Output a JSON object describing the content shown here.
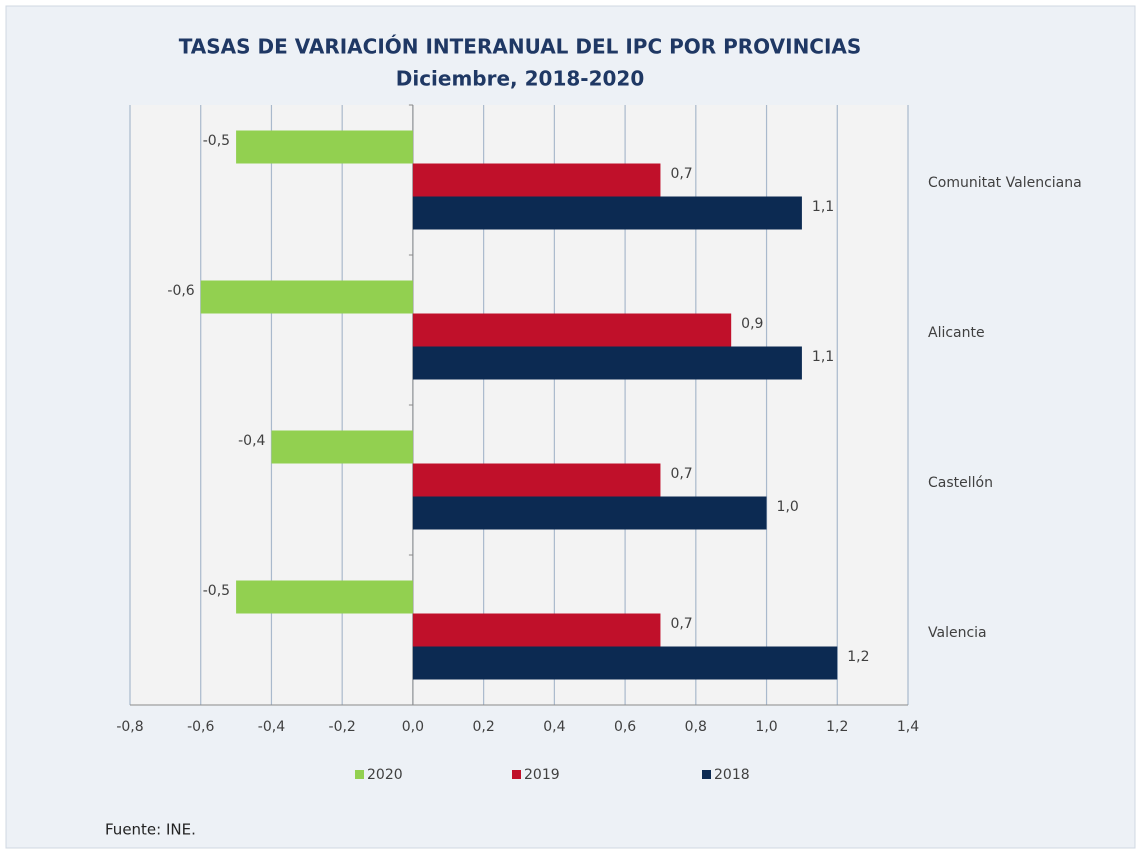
{
  "chart_data": {
    "type": "bar",
    "orientation": "horizontal",
    "title": "TASAS DE VARIACIÓN INTERANUAL DEL IPC POR PROVINCIAS",
    "subtitle": "Diciembre, 2018-2020",
    "categories": [
      "Comunitat Valenciana",
      "Alicante",
      "Castellón",
      "Valencia"
    ],
    "series": [
      {
        "name": "2020",
        "color": "#92d050",
        "values": [
          -0.5,
          -0.6,
          -0.4,
          -0.5
        ],
        "value_labels": [
          "-0,5",
          "-0,6",
          "-0,4",
          "-0,5"
        ]
      },
      {
        "name": "2019",
        "color": "#c0102a",
        "values": [
          0.7,
          0.9,
          0.7,
          0.7
        ],
        "value_labels": [
          "0,7",
          "0,9",
          "0,7",
          "0,7"
        ]
      },
      {
        "name": "2018",
        "color": "#0c2a52",
        "values": [
          1.1,
          1.1,
          1.0,
          1.2
        ],
        "value_labels": [
          "1,1",
          "1,1",
          "1,0",
          "1,2"
        ]
      }
    ],
    "xlim": [
      -0.8,
      1.4
    ],
    "xticks": [
      {
        "value": -0.8,
        "label": "-0,8"
      },
      {
        "value": -0.6,
        "label": "-0,6"
      },
      {
        "value": -0.4,
        "label": "-0,4"
      },
      {
        "value": -0.2,
        "label": "-0,2"
      },
      {
        "value": 0,
        "label": "0,0"
      },
      {
        "value": 0.2,
        "label": "0,2"
      },
      {
        "value": 0.4,
        "label": "0,4"
      },
      {
        "value": 0.6,
        "label": "0,6"
      },
      {
        "value": 0.8,
        "label": "0,8"
      },
      {
        "value": 1.0,
        "label": "1,0"
      },
      {
        "value": 1.2,
        "label": "1,2"
      },
      {
        "value": 1.4,
        "label": "1,4"
      }
    ],
    "grid": true,
    "legend": "bottom",
    "source": "Fuente: INE."
  }
}
